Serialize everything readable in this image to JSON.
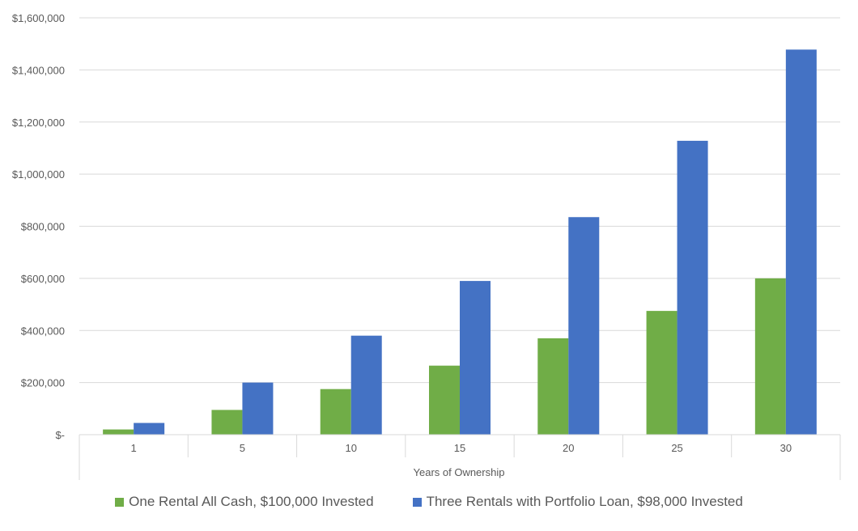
{
  "chart_data": {
    "type": "bar",
    "title": "",
    "xlabel": "Years of Ownership",
    "ylabel": "",
    "categories": [
      "1",
      "5",
      "10",
      "15",
      "20",
      "25",
      "30"
    ],
    "ylim": [
      0,
      1600000
    ],
    "y_ticks": [
      0,
      200000,
      400000,
      600000,
      800000,
      1000000,
      1200000,
      1400000,
      1600000
    ],
    "y_tick_labels": [
      "$-",
      "$200,000",
      "$400,000",
      "$600,000",
      "$800,000",
      "$1,000,000",
      "$1,200,000",
      "$1,400,000",
      "$1,600,000"
    ],
    "grid": true,
    "legend_position": "bottom",
    "series": [
      {
        "name": "One Rental All Cash, $100,000 Invested",
        "color": "#70ad47",
        "values": [
          20000,
          95000,
          175000,
          265000,
          370000,
          475000,
          600000
        ]
      },
      {
        "name": "Three Rentals with Portfolio Loan, $98,000 Invested",
        "color": "#4472c4",
        "values": [
          45000,
          200000,
          380000,
          590000,
          835000,
          1128000,
          1478000
        ]
      }
    ]
  }
}
